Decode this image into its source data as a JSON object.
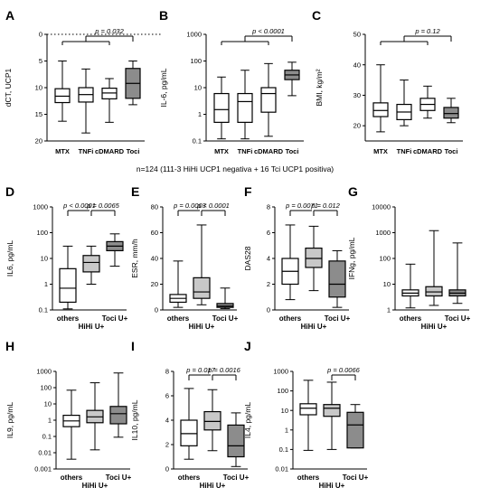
{
  "figure_note": "n=124 (111-3 HiHi UCP1 negativa + 16 Tci UCP1 positiva)",
  "colors": {
    "white_box": "#ffffff",
    "light_gray_box": "#c8c8c8",
    "dark_gray_box": "#8c8c8c",
    "ink": "#000000"
  },
  "chart_data": [
    {
      "panel": "A",
      "type": "box",
      "ylabel": "dCT, UCP1",
      "yscale": "linear",
      "inverted": true,
      "ylim": [
        0,
        20
      ],
      "yticks": [
        0,
        5,
        10,
        15,
        20
      ],
      "ytick_labels": [
        "0",
        "5",
        "10",
        "15",
        "20"
      ],
      "reference_line": 0,
      "categories": [
        "MTX",
        "TNFi",
        "cDMARD",
        "Toci"
      ],
      "box_colors": [
        "#ffffff",
        "#ffffff",
        "#ffffff",
        "#8c8c8c"
      ],
      "boxes": [
        {
          "min": 5,
          "q1": 10.2,
          "median": 11.6,
          "q3": 12.8,
          "max": 16.3
        },
        {
          "min": 6.5,
          "q1": 10,
          "median": 11.3,
          "q3": 12.7,
          "max": 18.5
        },
        {
          "min": 8.3,
          "q1": 10.1,
          "median": 11,
          "q3": 12.1,
          "max": 16.5
        },
        {
          "min": 5,
          "q1": 6.4,
          "median": 9.2,
          "q3": 12,
          "max": 13.2
        }
      ],
      "group_labels": [],
      "brackets": [
        {
          "from_group": [
            0,
            1,
            2
          ],
          "to": 3,
          "label": "p = 0.032"
        }
      ]
    },
    {
      "panel": "B",
      "type": "box",
      "ylabel": "IL-6, pg/mL",
      "yscale": "log",
      "ylim": [
        0.1,
        1000
      ],
      "yticks": [
        0.1,
        1,
        10,
        100,
        1000
      ],
      "ytick_labels": [
        "0.1",
        "1",
        "10",
        "100",
        "1000"
      ],
      "categories": [
        "MTX",
        "TNFi",
        "cDMARD",
        "Toci"
      ],
      "box_colors": [
        "#ffffff",
        "#ffffff",
        "#ffffff",
        "#8c8c8c"
      ],
      "boxes": [
        {
          "min": 0.12,
          "q1": 0.5,
          "median": 1.5,
          "q3": 6,
          "max": 25
        },
        {
          "min": 0.12,
          "q1": 0.5,
          "median": 3,
          "q3": 6,
          "max": 45
        },
        {
          "min": 0.15,
          "q1": 1.2,
          "median": 6,
          "q3": 10,
          "max": 80
        },
        {
          "min": 5,
          "q1": 20,
          "median": 30,
          "q3": 45,
          "max": 90
        }
      ],
      "group_labels": [],
      "brackets": [
        {
          "from_group": [
            0,
            1,
            2
          ],
          "to": 3,
          "label": "p < 0.0001"
        }
      ]
    },
    {
      "panel": "C",
      "type": "box",
      "ylabel": "BMI, kg/m²",
      "yscale": "linear",
      "ylim": [
        15,
        50
      ],
      "yticks": [
        20,
        30,
        40,
        50
      ],
      "ytick_labels": [
        "20",
        "30",
        "40",
        "50"
      ],
      "categories": [
        "MTX",
        "TNFi",
        "cDMARD",
        "Toci"
      ],
      "box_colors": [
        "#ffffff",
        "#ffffff",
        "#ffffff",
        "#8c8c8c"
      ],
      "boxes": [
        {
          "min": 18,
          "q1": 23,
          "median": 25,
          "q3": 27.5,
          "max": 40
        },
        {
          "min": 20,
          "q1": 22,
          "median": 24.5,
          "q3": 27,
          "max": 35
        },
        {
          "min": 22.5,
          "q1": 25,
          "median": 27,
          "q3": 29,
          "max": 33
        },
        {
          "min": 21,
          "q1": 22.5,
          "median": 24,
          "q3": 26,
          "max": 29
        }
      ],
      "group_labels": [],
      "brackets": [
        {
          "from_group": [
            0,
            1,
            2
          ],
          "to": 3,
          "label": "p = 0.12"
        }
      ]
    },
    {
      "panel": "D",
      "type": "box",
      "ylabel": "IL6, pg/mL",
      "yscale": "log",
      "ylim": [
        0.1,
        1000
      ],
      "yticks": [
        0.1,
        1,
        10,
        100,
        1000
      ],
      "ytick_labels": [
        "0.1",
        "1",
        "10",
        "100",
        "1000"
      ],
      "categories": [
        "others",
        "HiHi U+",
        "Toci U+"
      ],
      "box_colors": [
        "#ffffff",
        "#c8c8c8",
        "#8c8c8c"
      ],
      "boxes": [
        {
          "min": 0.11,
          "q1": 0.2,
          "median": 0.7,
          "q3": 4,
          "max": 30
        },
        {
          "min": 1,
          "q1": 3,
          "median": 7,
          "q3": 13,
          "max": 30
        },
        {
          "min": 5,
          "q1": 20,
          "median": 30,
          "q3": 45,
          "max": 90
        }
      ],
      "group_labels": [
        {
          "text": "others",
          "pos": 0
        },
        {
          "text": "Toci U+",
          "pos": 2
        },
        {
          "text": "HiHi U+",
          "pos": 1
        }
      ],
      "brackets": [
        {
          "from": 0,
          "to": 1,
          "label": "p < 0.0001"
        },
        {
          "from": 1,
          "to": 2,
          "label": "p = 0.0065"
        }
      ]
    },
    {
      "panel": "E",
      "type": "box",
      "ylabel": "ESR, mm/h",
      "yscale": "linear",
      "ylim": [
        0,
        80
      ],
      "yticks": [
        0,
        20,
        40,
        60,
        80
      ],
      "ytick_labels": [
        "0",
        "20",
        "40",
        "60",
        "80"
      ],
      "categories": [
        "others",
        "HiHi U+",
        "Toci U+"
      ],
      "box_colors": [
        "#ffffff",
        "#c8c8c8",
        "#8c8c8c"
      ],
      "boxes": [
        {
          "min": 2,
          "q1": 6,
          "median": 9,
          "q3": 12,
          "max": 38
        },
        {
          "min": 4,
          "q1": 9,
          "median": 14,
          "q3": 25,
          "max": 66
        },
        {
          "min": 1,
          "q1": 2,
          "median": 3,
          "q3": 5,
          "max": 17
        }
      ],
      "group_labels": [
        {
          "text": "others",
          "pos": 0
        },
        {
          "text": "Toci U+",
          "pos": 2
        },
        {
          "text": "HiHi U+",
          "pos": 1
        }
      ],
      "brackets": [
        {
          "from": 0,
          "to": 1,
          "label": "p = 0.0003"
        },
        {
          "from": 1,
          "to": 2,
          "label": "p < 0.0001"
        }
      ]
    },
    {
      "panel": "F",
      "type": "box",
      "ylabel": "DAS28",
      "yscale": "linear",
      "ylim": [
        0,
        8
      ],
      "yticks": [
        0,
        2,
        4,
        6,
        8
      ],
      "ytick_labels": [
        "0",
        "2",
        "4",
        "6",
        "8"
      ],
      "categories": [
        "others",
        "HiHi U+",
        "Toci U+"
      ],
      "box_colors": [
        "#ffffff",
        "#c8c8c8",
        "#8c8c8c"
      ],
      "boxes": [
        {
          "min": 0.8,
          "q1": 2,
          "median": 3,
          "q3": 4,
          "max": 6.6
        },
        {
          "min": 1.5,
          "q1": 3.3,
          "median": 4,
          "q3": 4.8,
          "max": 6.5
        },
        {
          "min": 0.2,
          "q1": 1,
          "median": 2,
          "q3": 3.8,
          "max": 4.6
        }
      ],
      "group_labels": [
        {
          "text": "others",
          "pos": 0
        },
        {
          "text": "Toci U+",
          "pos": 2
        },
        {
          "text": "HiHi U+",
          "pos": 1
        }
      ],
      "brackets": [
        {
          "from": 0,
          "to": 1,
          "label": "p = 0.0071"
        },
        {
          "from": 1,
          "to": 2,
          "label": "p = 0.012"
        }
      ]
    },
    {
      "panel": "G",
      "type": "box",
      "ylabel": "IFNg, pg/mL",
      "yscale": "log",
      "ylim": [
        1,
        10000
      ],
      "yticks": [
        1,
        10,
        100,
        1000,
        10000
      ],
      "ytick_labels": [
        "1",
        "10",
        "100",
        "1000",
        "10000"
      ],
      "categories": [
        "others",
        "HiHi U+",
        "Toci U+"
      ],
      "box_colors": [
        "#ffffff",
        "#c8c8c8",
        "#8c8c8c"
      ],
      "boxes": [
        {
          "min": 1.2,
          "q1": 3.5,
          "median": 4.5,
          "q3": 6,
          "max": 60
        },
        {
          "min": 1.5,
          "q1": 3.5,
          "median": 5,
          "q3": 8,
          "max": 1200
        },
        {
          "min": 1.8,
          "q1": 3.5,
          "median": 4.5,
          "q3": 6,
          "max": 400
        }
      ],
      "group_labels": [
        {
          "text": "others",
          "pos": 0
        },
        {
          "text": "Toci U+",
          "pos": 2
        },
        {
          "text": "HiHi U+",
          "pos": 1
        }
      ],
      "brackets": []
    },
    {
      "panel": "H",
      "type": "box",
      "ylabel": "IL9, pg/mL",
      "yscale": "log",
      "ylim": [
        0.001,
        1000
      ],
      "yticks": [
        0.001,
        0.01,
        0.1,
        1,
        10,
        100,
        1000
      ],
      "ytick_labels": [
        "0.001",
        "0.01",
        "0.1",
        "1",
        "10",
        "100",
        "1000"
      ],
      "categories": [
        "others",
        "HiHi U+",
        "Toci U+"
      ],
      "box_colors": [
        "#ffffff",
        "#c8c8c8",
        "#8c8c8c"
      ],
      "boxes": [
        {
          "min": 0.004,
          "q1": 0.4,
          "median": 0.9,
          "q3": 2,
          "max": 70
        },
        {
          "min": 0.015,
          "q1": 0.7,
          "median": 1.6,
          "q3": 4,
          "max": 200
        },
        {
          "min": 0.09,
          "q1": 0.6,
          "median": 2.5,
          "q3": 7,
          "max": 800
        }
      ],
      "group_labels": [
        {
          "text": "others",
          "pos": 0
        },
        {
          "text": "Toci U+",
          "pos": 2
        },
        {
          "text": "HiHi U+",
          "pos": 1
        }
      ],
      "brackets": []
    },
    {
      "panel": "I",
      "type": "box",
      "ylabel": "IL10, pg/mL",
      "yscale": "linear",
      "ylim": [
        0,
        8
      ],
      "yticks": [
        0,
        2,
        4,
        6,
        8
      ],
      "ytick_labels": [
        "0",
        "2",
        "4",
        "6",
        "8"
      ],
      "categories": [
        "others",
        "HiHi U+",
        "Toci U+"
      ],
      "box_colors": [
        "#ffffff",
        "#c8c8c8",
        "#8c8c8c"
      ],
      "boxes": [
        {
          "min": 0.8,
          "q1": 1.9,
          "median": 2.9,
          "q3": 4,
          "max": 6.6
        },
        {
          "min": 1.5,
          "q1": 3.2,
          "median": 3.9,
          "q3": 4.7,
          "max": 6.5
        },
        {
          "min": 0.2,
          "q1": 1,
          "median": 1.9,
          "q3": 3.6,
          "max": 4.6
        }
      ],
      "group_labels": [
        {
          "text": "others",
          "pos": 0
        },
        {
          "text": "Toci U+",
          "pos": 2
        },
        {
          "text": "HiHi U+",
          "pos": 1
        }
      ],
      "brackets": [
        {
          "from": 0,
          "to": 1,
          "label": "p = 0.017"
        },
        {
          "from": 1,
          "to": 2,
          "label": "p = 0.0016"
        }
      ]
    },
    {
      "panel": "J",
      "type": "box",
      "ylabel": "IL4, pg/mL",
      "yscale": "log",
      "ylim": [
        0.01,
        1000
      ],
      "yticks": [
        0.01,
        0.1,
        1,
        10,
        100,
        1000
      ],
      "ytick_labels": [
        "0.01",
        "0.1",
        "1",
        "10",
        "100",
        "1000"
      ],
      "categories": [
        "others",
        "HiHi U+",
        "Toci U+"
      ],
      "box_colors": [
        "#ffffff",
        "#c8c8c8",
        "#8c8c8c"
      ],
      "boxes": [
        {
          "min": 0.09,
          "q1": 6,
          "median": 13,
          "q3": 22,
          "max": 350
        },
        {
          "min": 0.1,
          "q1": 5,
          "median": 13,
          "q3": 20,
          "max": 280
        },
        {
          "min": 0.12,
          "q1": 0.12,
          "median": 1.8,
          "q3": 8,
          "max": 20
        }
      ],
      "group_labels": [
        {
          "text": "others",
          "pos": 0
        },
        {
          "text": "Toci U+",
          "pos": 2
        },
        {
          "text": "HiHi U+",
          "pos": 1
        }
      ],
      "brackets": [
        {
          "from": 1,
          "to": 2,
          "label": "p = 0.0066"
        }
      ]
    }
  ]
}
